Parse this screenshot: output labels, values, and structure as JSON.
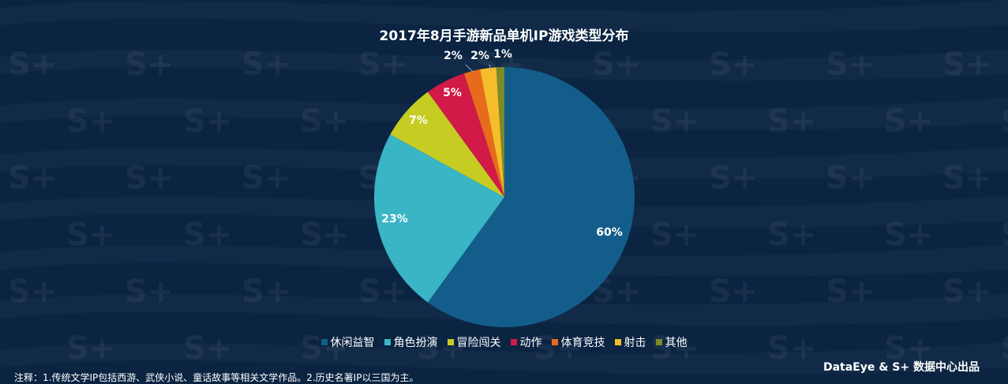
{
  "watermark_text": "S+",
  "colors": {
    "background": "#0a2442",
    "watermark": "#ffffff"
  },
  "chart_data": {
    "type": "pie",
    "title": "2017年8月手游新品单机IP游戏类型分布",
    "categories": [
      "休闲益智",
      "角色扮演",
      "冒险闯关",
      "动作",
      "体育竞技",
      "射击",
      "其他"
    ],
    "values": [
      60,
      23,
      7,
      5,
      2,
      2,
      1
    ],
    "labels": [
      "60%",
      "23%",
      "7%",
      "5%",
      "2%",
      "2%",
      "1%"
    ],
    "colors": [
      "#135d8a",
      "#3ab5c6",
      "#c6cc22",
      "#d11a47",
      "#e86a1c",
      "#f5bd2a",
      "#7b8a28"
    ],
    "legend_position": "bottom"
  },
  "footer": {
    "brand": "DataEye & S+ 数据中心出品",
    "note": "注释：1.传统文学IP包括西游、武侠小说、童话故事等相关文学作品。2.历史名著IP以三国为主。"
  }
}
